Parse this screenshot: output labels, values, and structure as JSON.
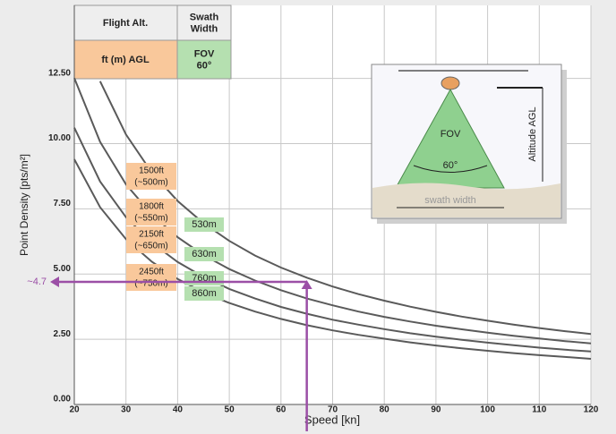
{
  "chart_data": {
    "type": "line",
    "x_label": "Speed [kn]",
    "y_label": "Point Density [pts/m²]",
    "x": [
      20,
      25,
      30,
      35,
      40,
      45,
      50,
      55,
      60,
      65,
      70,
      75,
      80,
      85,
      90,
      95,
      100,
      105,
      110,
      115,
      120
    ],
    "series": [
      {
        "name": "1500ft (~500m)",
        "swath": "530m",
        "color": "#5a5a5a",
        "values": [
          null,
          12.39,
          10.35,
          8.89,
          7.8,
          6.95,
          6.27,
          5.71,
          5.25,
          4.86,
          4.52,
          4.23,
          3.98,
          3.75,
          3.55,
          3.37,
          3.21,
          3.06,
          2.93,
          2.81,
          2.7
        ]
      },
      {
        "name": "1800ft (~550m)",
        "swath": "630m",
        "color": "#5a5a5a",
        "values": [
          12.51,
          10.07,
          8.44,
          7.28,
          6.41,
          5.73,
          5.19,
          4.75,
          4.38,
          4.06,
          3.8,
          3.56,
          3.36,
          3.18,
          3.02,
          2.88,
          2.75,
          2.63,
          2.53,
          2.43,
          2.34
        ]
      },
      {
        "name": "2150ft (~650m)",
        "swath": "760m",
        "color": "#5a5a5a",
        "values": [
          10.61,
          8.55,
          7.18,
          6.2,
          5.46,
          4.89,
          4.43,
          4.06,
          3.74,
          3.48,
          3.25,
          3.06,
          2.89,
          2.73,
          2.6,
          2.48,
          2.37,
          2.27,
          2.18,
          2.1,
          2.03
        ]
      },
      {
        "name": "2450ft (~750m)",
        "swath": "860m",
        "color": "#5a5a5a",
        "values": [
          9.4,
          7.56,
          6.34,
          5.47,
          4.81,
          4.3,
          3.89,
          3.56,
          3.28,
          3.04,
          2.84,
          2.67,
          2.52,
          2.38,
          2.26,
          2.15,
          2.06,
          1.97,
          1.89,
          1.82,
          1.75
        ]
      }
    ],
    "xlim": [
      20,
      120
    ],
    "ylim": [
      0,
      15.3
    ],
    "xticks": [
      20,
      30,
      40,
      50,
      60,
      70,
      80,
      90,
      100,
      110,
      120
    ],
    "yticks": [
      {
        "value": 0,
        "label": "0.00"
      },
      {
        "value": 2.5,
        "label": "2.50"
      },
      {
        "value": 5,
        "label": "5.00"
      },
      {
        "value": 7.5,
        "label": "7.50"
      },
      {
        "value": 10,
        "label": "10.00"
      },
      {
        "value": 12.5,
        "label": "12.50"
      }
    ],
    "grid": true,
    "annotation": {
      "x": 65,
      "y": 4.7,
      "label": "~4.7",
      "color": "#9b4fa6"
    },
    "table": {
      "col1_header": "Flight Alt.",
      "col2_header": "Swath Width",
      "col1_sub": "ft (m) AGL",
      "col2_sub": "FOV 60°"
    },
    "inset": {
      "fov": "FOV",
      "angle": "60°",
      "altitude": "Altitude AGL",
      "swath": "swath width"
    }
  }
}
